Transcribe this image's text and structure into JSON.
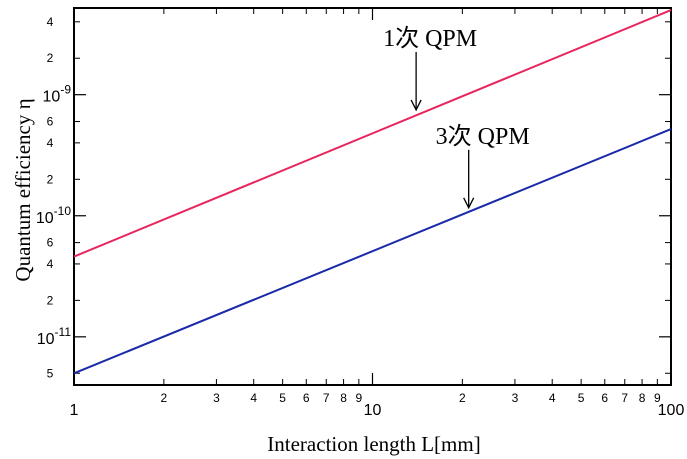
{
  "chart_data": {
    "type": "line",
    "xlabel": "Interaction length L[mm]",
    "ylabel": "Quantum efficiency  η",
    "xscale": "log",
    "yscale": "log",
    "xlim": [
      1,
      100
    ],
    "ylim": [
      4e-12,
      5.2e-09
    ],
    "grid": false,
    "x_major_ticks": [
      {
        "value": 1,
        "label": "1"
      },
      {
        "value": 10,
        "label": "10"
      },
      {
        "value": 100,
        "label": "100"
      }
    ],
    "x_minor_ticks": [
      {
        "value": 2,
        "label": "2"
      },
      {
        "value": 3,
        "label": "3"
      },
      {
        "value": 4,
        "label": "4"
      },
      {
        "value": 5,
        "label": "5"
      },
      {
        "value": 6,
        "label": "6"
      },
      {
        "value": 7,
        "label": "7"
      },
      {
        "value": 8,
        "label": "8"
      },
      {
        "value": 9,
        "label": "9"
      },
      {
        "value": 20,
        "label": "2"
      },
      {
        "value": 30,
        "label": "3"
      },
      {
        "value": 40,
        "label": "4"
      },
      {
        "value": 50,
        "label": "5"
      },
      {
        "value": 60,
        "label": "6"
      },
      {
        "value": 70,
        "label": "7"
      },
      {
        "value": 80,
        "label": "8"
      },
      {
        "value": 90,
        "label": "9"
      }
    ],
    "y_major_ticks": [
      {
        "value": 1e-11,
        "label": "10⁻¹¹",
        "base": "10",
        "exp": "-11"
      },
      {
        "value": 1e-10,
        "label": "10⁻¹⁰",
        "base": "10",
        "exp": "-10"
      },
      {
        "value": 1e-09,
        "label": "10⁻⁹",
        "base": "10",
        "exp": "-9"
      }
    ],
    "y_minor_ticks": [
      {
        "value": 5e-12,
        "label": "5"
      },
      {
        "value": 2e-11,
        "label": "2"
      },
      {
        "value": 4e-11,
        "label": "4"
      },
      {
        "value": 6e-11,
        "label": "6"
      },
      {
        "value": 2e-10,
        "label": "2"
      },
      {
        "value": 4e-10,
        "label": "4"
      },
      {
        "value": 6e-10,
        "label": "6"
      },
      {
        "value": 2e-09,
        "label": "2"
      },
      {
        "value": 4e-09,
        "label": "4"
      }
    ],
    "series": [
      {
        "color": "#e8265e",
        "x": [
          1,
          100
        ],
        "y": [
          4.6e-11,
          5e-09
        ]
      },
      {
        "color": "#1a2aa8",
        "x": [
          1,
          100
        ],
        "y": [
          5e-12,
          5.2e-10
        ]
      }
    ],
    "annotations": [
      {
        "text": "1次  QPM",
        "arrow_to": {
          "x": 14,
          "y": 7.2e-10
        }
      },
      {
        "text": "3次  QPM",
        "arrow_to": {
          "x": 21,
          "y": 1.12e-10
        }
      }
    ]
  }
}
